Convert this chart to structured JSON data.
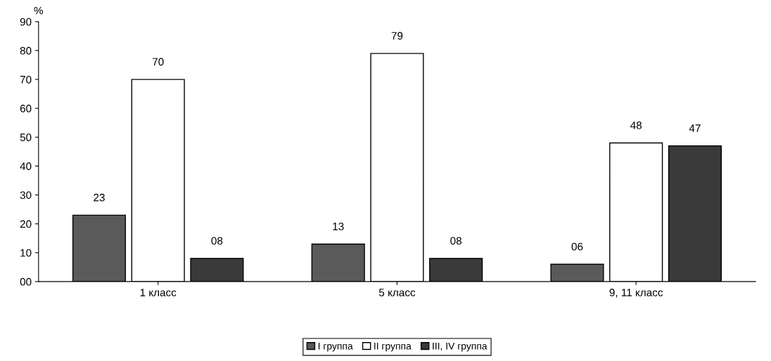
{
  "chart_data": {
    "type": "bar",
    "ylabel": "%",
    "categories": [
      "1 класс",
      "5 класс",
      "9, 11 класс"
    ],
    "series": [
      {
        "name": "I группа",
        "color": "#5a5a5a",
        "values": [
          23,
          13,
          6
        ],
        "value_labels": [
          "23",
          "13",
          "06"
        ]
      },
      {
        "name": "II группа",
        "color": "#ffffff",
        "values": [
          70,
          79,
          48
        ],
        "value_labels": [
          "70",
          "79",
          "48"
        ]
      },
      {
        "name": "III, IV группа",
        "color": "#3a3a3a",
        "values": [
          8,
          8,
          47
        ],
        "value_labels": [
          "08",
          "08",
          "47"
        ]
      }
    ],
    "ylim": [
      0,
      90
    ],
    "yticks": [
      {
        "value": 0,
        "label": "00"
      },
      10,
      20,
      30,
      40,
      50,
      60,
      70,
      80,
      90
    ],
    "grid": false,
    "legend": "bottom"
  }
}
